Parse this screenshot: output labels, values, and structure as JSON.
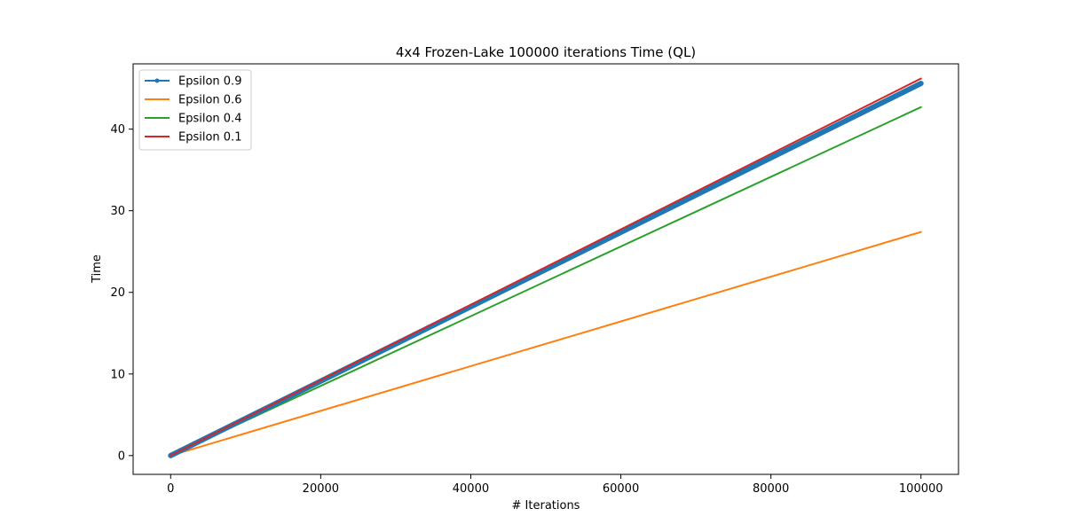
{
  "chart_data": {
    "type": "line",
    "title": "4x4 Frozen-Lake 100000 iterations  Time (QL)",
    "xlabel": "# Iterations",
    "ylabel": "Time",
    "xlim": [
      -5000,
      105000
    ],
    "ylim": [
      -2.3,
      48.0
    ],
    "xticks": [
      0,
      20000,
      40000,
      60000,
      80000,
      100000
    ],
    "yticks": [
      0,
      10,
      20,
      30,
      40
    ],
    "grid": false,
    "legend_position": "top-left",
    "series": [
      {
        "name": "Epsilon 0.9",
        "color": "#1f77b4",
        "marker": "dot",
        "x": [
          0,
          100000
        ],
        "y": [
          0,
          45.6
        ]
      },
      {
        "name": "Epsilon 0.6",
        "color": "#ff7f0e",
        "marker": "none",
        "x": [
          0,
          100000
        ],
        "y": [
          0,
          27.4
        ]
      },
      {
        "name": "Epsilon 0.4",
        "color": "#2ca02c",
        "marker": "none",
        "x": [
          0,
          100000
        ],
        "y": [
          0,
          42.7
        ]
      },
      {
        "name": "Epsilon 0.1",
        "color": "#d62728",
        "marker": "none",
        "x": [
          0,
          100000
        ],
        "y": [
          0,
          46.2
        ]
      }
    ]
  }
}
